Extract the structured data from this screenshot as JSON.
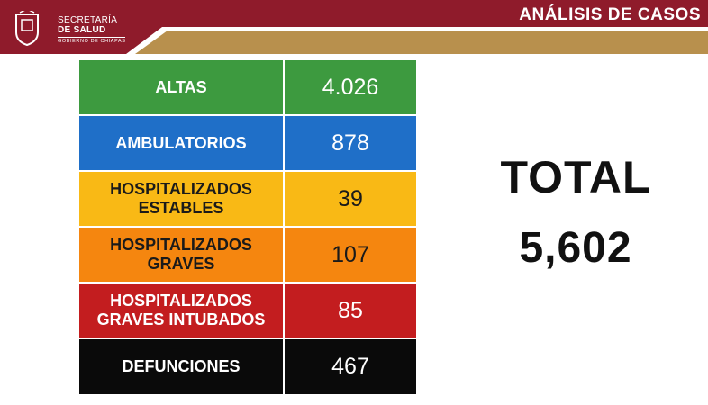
{
  "header": {
    "org_line1": "SECRETARÍA",
    "org_line2": "DE SALUD",
    "org_line3": "GOBIERNO DE CHIAPAS",
    "title": "ANÁLISIS DE CASOS",
    "colors": {
      "maroon": "#8f1b2b",
      "gold": "#b8904d"
    }
  },
  "table": {
    "rows": [
      {
        "label": "ALTAS",
        "value": "4.026",
        "color": "#3d9a3f",
        "text_color": "#ffffff"
      },
      {
        "label": "AMBULATORIOS",
        "value": "878",
        "color": "#1f6fc8",
        "text_color": "#ffffff"
      },
      {
        "label": "HOSPITALIZADOS ESTABLES",
        "value": "39",
        "color": "#f9b915",
        "text_color": "#1a1a1a"
      },
      {
        "label": "HOSPITALIZADOS GRAVES",
        "value": "107",
        "color": "#f5860f",
        "text_color": "#1a1a1a"
      },
      {
        "label": "HOSPITALIZADOS GRAVES INTUBADOS",
        "value": "85",
        "color": "#c31d1f",
        "text_color": "#ffffff"
      },
      {
        "label": "DEFUNCIONES",
        "value": "467",
        "color": "#0a0a0a",
        "text_color": "#ffffff"
      }
    ]
  },
  "total": {
    "label": "TOTAL",
    "value": "5,602"
  }
}
